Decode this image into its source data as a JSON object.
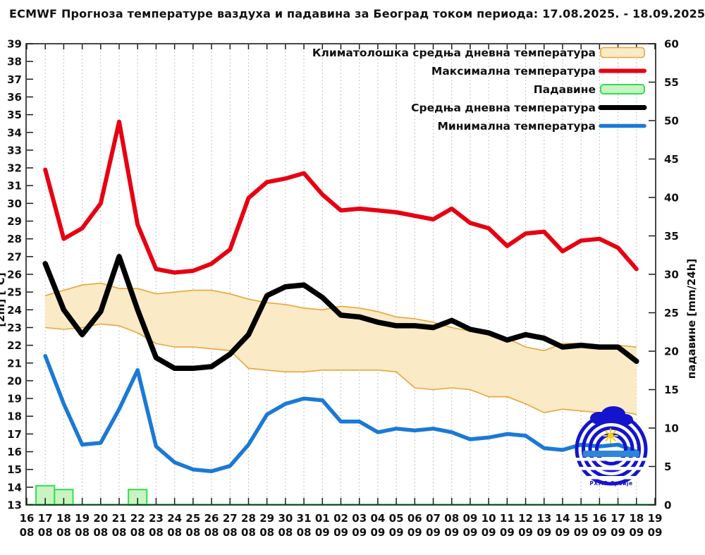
{
  "title": "ECMWF Прогноза температуре ваздуха и падавина за Београд током периода: 17.08.2025. - 18.09.2025.",
  "chart_data": {
    "type": "line",
    "title": "ECMWF Прогноза температуре ваздуха и падавина за Београд током периода: 17.08.2025. - 18.09.2025.",
    "x": {
      "days": [
        "16",
        "17",
        "18",
        "19",
        "20",
        "21",
        "22",
        "23",
        "24",
        "25",
        "26",
        "27",
        "28",
        "29",
        "30",
        "31",
        "01",
        "02",
        "03",
        "04",
        "05",
        "06",
        "07",
        "08",
        "09",
        "10",
        "11",
        "12",
        "13",
        "14",
        "15",
        "16",
        "17",
        "18",
        "19"
      ],
      "months": [
        "08",
        "08",
        "08",
        "08",
        "08",
        "08",
        "08",
        "08",
        "08",
        "08",
        "08",
        "08",
        "08",
        "08",
        "08",
        "08",
        "09",
        "09",
        "09",
        "09",
        "09",
        "09",
        "09",
        "09",
        "09",
        "09",
        "09",
        "09",
        "09",
        "09",
        "09",
        "09",
        "09",
        "09",
        "09"
      ]
    },
    "y_left": {
      "label": "[2m] [°C]",
      "min": 13,
      "max": 39,
      "step": 1,
      "ticks": [
        13,
        14,
        15,
        16,
        17,
        18,
        19,
        20,
        21,
        22,
        23,
        24,
        25,
        26,
        27,
        28,
        29,
        30,
        31,
        32,
        33,
        34,
        35,
        36,
        37,
        38,
        39
      ]
    },
    "y_right": {
      "label": "падавине [mm/24h]",
      "min": 0,
      "max": 60,
      "step": 5,
      "ticks": [
        0,
        5,
        10,
        15,
        20,
        25,
        30,
        35,
        40,
        45,
        50,
        55,
        60
      ]
    },
    "series_start_date_index": 1,
    "series": {
      "climatology_band": {
        "name": "Климатолошка средња дневна температура",
        "upper": [
          24.8,
          25.1,
          25.4,
          25.5,
          25.2,
          25.2,
          24.9,
          25.0,
          25.1,
          25.1,
          24.9,
          24.6,
          24.4,
          24.3,
          24.1,
          24.0,
          24.2,
          24.1,
          23.9,
          23.6,
          23.5,
          23.3,
          23.0,
          22.8,
          22.7,
          22.4,
          21.9,
          21.7,
          22.1,
          22.1,
          22.0,
          22.0,
          21.9
        ],
        "lower": [
          23.0,
          22.9,
          23.0,
          23.2,
          23.1,
          22.7,
          22.1,
          21.9,
          21.9,
          21.8,
          21.7,
          20.7,
          20.6,
          20.5,
          20.5,
          20.6,
          20.6,
          20.6,
          20.6,
          20.5,
          19.6,
          19.5,
          19.6,
          19.5,
          19.1,
          19.1,
          18.7,
          18.2,
          18.4,
          18.3,
          18.2,
          18.3,
          18.1
        ]
      },
      "max_temp": {
        "name": "Максимална температура",
        "values": [
          31.9,
          28.0,
          28.6,
          30.0,
          34.6,
          28.8,
          26.3,
          26.1,
          26.2,
          26.6,
          27.4,
          30.3,
          31.2,
          31.4,
          31.7,
          30.5,
          29.6,
          29.7,
          29.6,
          29.5,
          29.3,
          29.1,
          29.7,
          28.9,
          28.6,
          27.6,
          28.3,
          28.4,
          27.3,
          27.9,
          28.0,
          27.5,
          26.3
        ]
      },
      "precipitation": {
        "name": "Падавине",
        "dates": [
          "17.08",
          "18.08",
          "22.08"
        ],
        "values_mm": [
          2.5,
          2.0,
          2.0
        ]
      },
      "mean_temp": {
        "name": "Средња дневна температура",
        "values": [
          26.6,
          24.0,
          22.6,
          23.9,
          27.0,
          24.0,
          21.3,
          20.7,
          20.7,
          20.8,
          21.5,
          22.6,
          24.8,
          25.3,
          25.4,
          24.7,
          23.7,
          23.6,
          23.3,
          23.1,
          23.1,
          23.0,
          23.4,
          22.9,
          22.7,
          22.3,
          22.6,
          22.4,
          21.9,
          22.0,
          21.9,
          21.9,
          21.1
        ]
      },
      "min_temp": {
        "name": "Минимална температура",
        "values": [
          21.4,
          18.7,
          16.4,
          16.5,
          18.4,
          20.6,
          16.3,
          15.4,
          15.0,
          14.9,
          15.2,
          16.4,
          18.1,
          18.7,
          19.0,
          18.9,
          17.7,
          17.7,
          17.1,
          17.3,
          17.2,
          17.3,
          17.1,
          16.7,
          16.8,
          17.0,
          16.9,
          16.2,
          16.1,
          16.4,
          16.3,
          16.4,
          16.0
        ]
      }
    },
    "legend": [
      {
        "label": "Климатолошка средња дневна температура",
        "swatch": "box",
        "fill": "#faeac6",
        "stroke": "#eaa43c",
        "stroke_width": 1.6,
        "h": 14
      },
      {
        "label": "Максимална температура",
        "swatch": "line",
        "stroke": "#e60012",
        "stroke_width": 6
      },
      {
        "label": "Падавине",
        "swatch": "box",
        "fill": "#c9f4c2",
        "stroke": "#33dd55",
        "stroke_width": 2,
        "h": 13
      },
      {
        "label": "Средња дневна температура",
        "swatch": "line",
        "stroke": "#000000",
        "stroke_width": 7
      },
      {
        "label": "Минимална температура",
        "swatch": "line",
        "stroke": "#1b79d6",
        "stroke_width": 5.5
      }
    ],
    "colors": {
      "red": "#e60012",
      "black": "#000000",
      "blue": "#1b79d6",
      "band_fill": "#faeac6",
      "band_edge": "#eaa43c",
      "green_fill": "#c9f4c2",
      "green_edge": "#33dd55",
      "grid": "#b0b0b0",
      "frame": "#1a1a1a",
      "logo_blue": "#1414cc",
      "logo_sea": "#2f86d8",
      "sun_yellow": "#f0d020"
    },
    "grid": "vertical-dotted-per-day",
    "legend_position": "top-right-inside",
    "logo_text": "РХМЗ Србије"
  }
}
